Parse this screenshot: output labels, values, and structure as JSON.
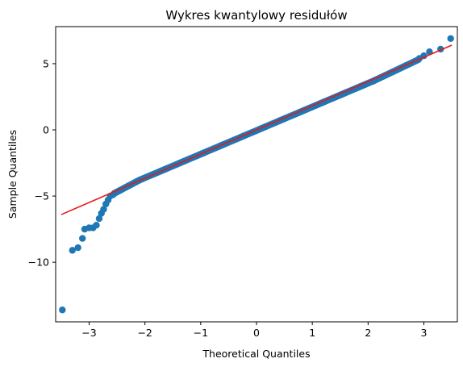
{
  "chart_data": {
    "type": "scatter",
    "title": "Wykres kwantylowy residułów",
    "xlabel": "Theoretical Quantiles",
    "ylabel": "Sample Quantiles",
    "xlim": [
      -3.6,
      3.6
    ],
    "ylim": [
      -14.5,
      7.8
    ],
    "xticks": [
      -3,
      -2,
      -1,
      0,
      1,
      2,
      3
    ],
    "yticks": [
      -10,
      -5,
      0,
      5
    ],
    "ytick_labels": [
      "−10",
      "−5",
      "0",
      "5"
    ],
    "xtick_labels": [
      "−3",
      "−2",
      "−1",
      "0",
      "1",
      "2",
      "3"
    ],
    "grid": false,
    "colors": {
      "points": "#1f77b4",
      "line": "#e41a1c"
    },
    "reference_line": {
      "x": [
        -3.5,
        3.5
      ],
      "y": [
        -6.4,
        6.4
      ]
    },
    "outliers": [
      {
        "x": -3.48,
        "y": -13.6
      },
      {
        "x": -3.3,
        "y": -9.1
      },
      {
        "x": -3.2,
        "y": -8.9
      },
      {
        "x": -3.12,
        "y": -8.2
      },
      {
        "x": -3.08,
        "y": -7.5
      },
      {
        "x": -3.0,
        "y": -7.4
      },
      {
        "x": -2.93,
        "y": -7.4
      },
      {
        "x": -2.87,
        "y": -7.2
      },
      {
        "x": -2.82,
        "y": -6.7
      },
      {
        "x": -2.78,
        "y": -6.3
      },
      {
        "x": -2.74,
        "y": -6.0
      },
      {
        "x": -2.7,
        "y": -5.6
      },
      {
        "x": -2.66,
        "y": -5.3
      },
      {
        "x": -2.62,
        "y": -5.0
      },
      {
        "x": -2.57,
        "y": -4.9
      },
      {
        "x": 2.92,
        "y": 5.4
      },
      {
        "x": 3.0,
        "y": 5.6
      },
      {
        "x": 3.1,
        "y": 5.9
      },
      {
        "x": 3.3,
        "y": 6.1
      },
      {
        "x": 3.48,
        "y": 6.9
      }
    ],
    "dense_segments": [
      {
        "x0": -2.55,
        "y0": -4.8,
        "x1": -2.1,
        "y1": -3.8,
        "n": 22
      },
      {
        "x0": -2.1,
        "y0": -3.8,
        "x1": 2.1,
        "y1": 3.7,
        "n": 140
      },
      {
        "x0": 2.1,
        "y0": 3.7,
        "x1": 2.9,
        "y1": 5.3,
        "n": 26
      }
    ]
  }
}
